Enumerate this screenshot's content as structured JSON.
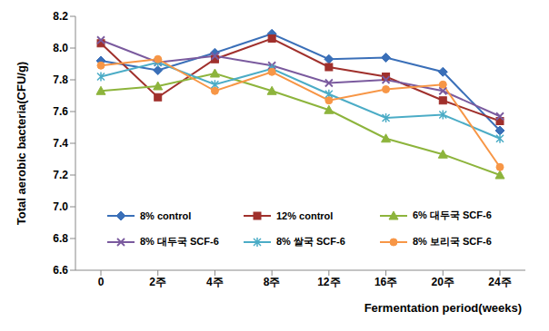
{
  "chart_data": {
    "type": "line",
    "x_label": "Fermentation period(weeks)",
    "y_label": "Total aerobic bacteria(CFU/g)",
    "categories": [
      "0",
      "2주",
      "4주",
      "8주",
      "12주",
      "16주",
      "20주",
      "24주"
    ],
    "ylim": [
      6.6,
      8.2
    ],
    "yticks": [
      6.6,
      6.8,
      {
        "value": 7,
        "label": "7.0"
      },
      7.2,
      7.4,
      7.6,
      7.8,
      {
        "value": 8,
        "label": "8.0"
      },
      8.2
    ],
    "grid": false,
    "legend": "bottom",
    "series": [
      {
        "name": "8% control",
        "color": "#3a6fb8",
        "marker": "diamond",
        "values": [
          7.92,
          7.86,
          7.97,
          8.09,
          7.93,
          7.94,
          7.85,
          7.48
        ]
      },
      {
        "name": "12% control",
        "color": "#a0302c",
        "marker": "square",
        "values": [
          8.03,
          7.69,
          7.93,
          8.06,
          7.88,
          7.82,
          7.67,
          7.54
        ]
      },
      {
        "name": "6% 대두국 SCF-6",
        "color": "#8db43c",
        "marker": "triangle",
        "values": [
          7.73,
          7.76,
          7.84,
          7.73,
          7.61,
          7.43,
          7.33,
          7.2
        ]
      },
      {
        "name": "8% 대두국 SCF-6",
        "color": "#7a5a9e",
        "marker": "x",
        "values": [
          8.05,
          7.91,
          7.95,
          7.89,
          7.78,
          7.8,
          7.73,
          7.57
        ]
      },
      {
        "name": "8% 쌀국 SCF-6",
        "color": "#4bacc6",
        "marker": "star",
        "values": [
          7.82,
          7.91,
          7.77,
          7.87,
          7.71,
          7.56,
          7.58,
          7.43
        ]
      },
      {
        "name": "8% 보리국 SCF-6",
        "color": "#f79646",
        "marker": "circle",
        "values": [
          7.89,
          7.93,
          7.73,
          7.85,
          7.67,
          7.74,
          7.77,
          7.25
        ]
      }
    ]
  }
}
